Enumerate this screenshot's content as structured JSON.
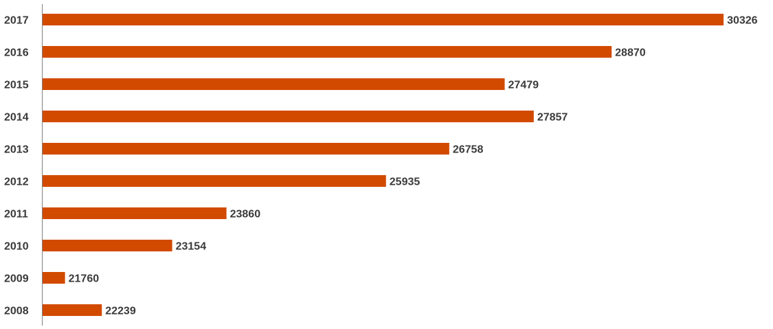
{
  "chart_data": {
    "type": "bar",
    "orientation": "horizontal",
    "categories": [
      "2017",
      "2016",
      "2015",
      "2014",
      "2013",
      "2012",
      "2011",
      "2010",
      "2009",
      "2008"
    ],
    "values": [
      30326,
      28870,
      27479,
      27857,
      26758,
      25935,
      23860,
      23154,
      21760,
      22239
    ],
    "title": "",
    "xlabel": "",
    "ylabel": "",
    "grid": false,
    "legend": "none",
    "bar_color": "#d24a00",
    "axis_color": "#7f7f7f",
    "label_color": "#3a3a3a"
  }
}
